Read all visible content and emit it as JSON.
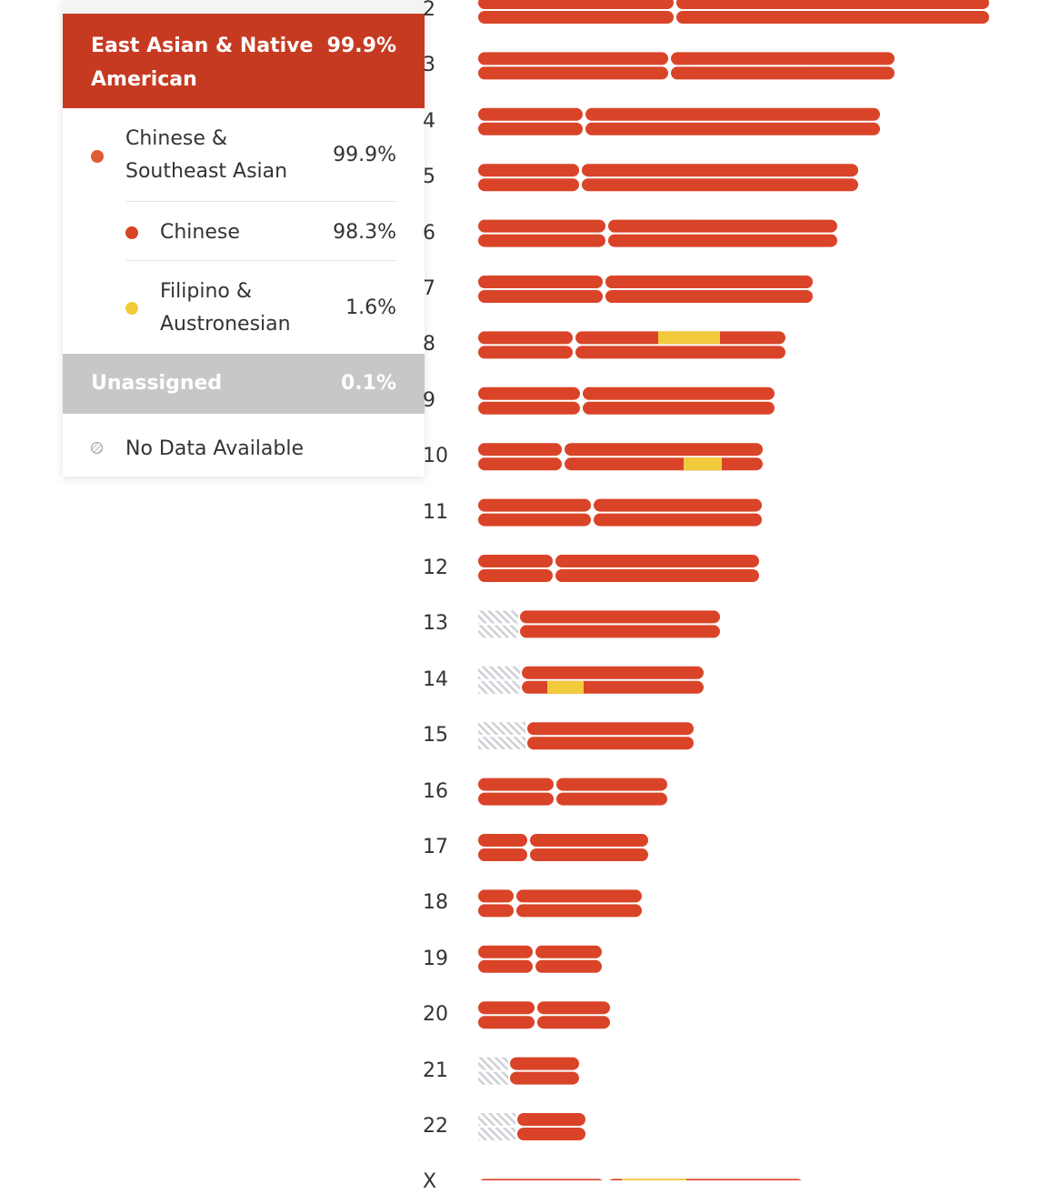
{
  "colors": {
    "east_asian": "#c63a22",
    "chinese": "#d94428",
    "filipino": "#f2cb3d",
    "unassigned": "#c7c7ca",
    "no_data_hatch": "#cfcfd6"
  },
  "legend": {
    "region": {
      "name": "East Asian & Native American",
      "percent": "99.9%"
    },
    "subregion": {
      "name_line1": "Chinese &",
      "name_line2": "Southeast Asian",
      "percent": "99.9%",
      "dot_color": "#e05a34"
    },
    "populations": [
      {
        "name_line1": "Chinese",
        "name_line2": "",
        "percent": "98.3%",
        "dot_color": "#d94428"
      },
      {
        "name_line1": "Filipino &",
        "name_line2": "Austronesian",
        "percent": "1.6%",
        "dot_color": "#f2cb3d"
      }
    ],
    "unassigned": {
      "name": "Unassigned",
      "percent": "0.1%"
    },
    "no_data": {
      "name": "No Data Available",
      "icon": "hatched-circle-icon"
    }
  },
  "chromosomes": [
    {
      "label": "2",
      "length": 562,
      "centromere": 216,
      "nodata_end": 0,
      "top_yellow": [],
      "bottom_yellow": []
    },
    {
      "label": "3",
      "length": 458,
      "centromere": 210,
      "nodata_end": 0,
      "top_yellow": [],
      "bottom_yellow": []
    },
    {
      "label": "4",
      "length": 442,
      "centromere": 116,
      "nodata_end": 0,
      "top_yellow": [],
      "bottom_yellow": []
    },
    {
      "label": "5",
      "length": 418,
      "centromere": 112,
      "nodata_end": 0,
      "top_yellow": [],
      "bottom_yellow": []
    },
    {
      "label": "6",
      "length": 395,
      "centromere": 141,
      "nodata_end": 0,
      "top_yellow": [],
      "bottom_yellow": []
    },
    {
      "label": "7",
      "length": 368,
      "centromere": 138,
      "nodata_end": 0,
      "top_yellow": [],
      "bottom_yellow": []
    },
    {
      "label": "8",
      "length": 338,
      "centromere": 105,
      "nodata_end": 0,
      "top_yellow": [
        [
          198,
          266
        ]
      ],
      "bottom_yellow": []
    },
    {
      "label": "9",
      "length": 326,
      "centromere": 113,
      "nodata_end": 0,
      "top_yellow": [],
      "bottom_yellow": []
    },
    {
      "label": "10",
      "length": 313,
      "centromere": 93,
      "nodata_end": 0,
      "top_yellow": [],
      "bottom_yellow": [
        [
          226,
          268
        ]
      ]
    },
    {
      "label": "11",
      "length": 312,
      "centromere": 125,
      "nodata_end": 0,
      "top_yellow": [],
      "bottom_yellow": []
    },
    {
      "label": "12",
      "length": 309,
      "centromere": 83,
      "nodata_end": 0,
      "top_yellow": [],
      "bottom_yellow": []
    },
    {
      "label": "13",
      "length": 266,
      "centromere": 44,
      "nodata_end": 44,
      "top_yellow": [],
      "bottom_yellow": []
    },
    {
      "label": "14",
      "length": 248,
      "centromere": 46,
      "nodata_end": 46,
      "top_yellow": [],
      "bottom_yellow": [
        [
          76,
          116
        ]
      ]
    },
    {
      "label": "15",
      "length": 237,
      "centromere": 52,
      "nodata_end": 52,
      "top_yellow": [],
      "bottom_yellow": []
    },
    {
      "label": "16",
      "length": 208,
      "centromere": 84,
      "nodata_end": 0,
      "top_yellow": [],
      "bottom_yellow": []
    },
    {
      "label": "17",
      "length": 187,
      "centromere": 55,
      "nodata_end": 0,
      "top_yellow": [],
      "bottom_yellow": []
    },
    {
      "label": "18",
      "length": 180,
      "centromere": 40,
      "nodata_end": 0,
      "top_yellow": [],
      "bottom_yellow": []
    },
    {
      "label": "19",
      "length": 136,
      "centromere": 61,
      "nodata_end": 0,
      "top_yellow": [],
      "bottom_yellow": []
    },
    {
      "label": "20",
      "length": 145,
      "centromere": 63,
      "nodata_end": 0,
      "top_yellow": [],
      "bottom_yellow": []
    },
    {
      "label": "21",
      "length": 111,
      "centromere": 33,
      "nodata_end": 33,
      "top_yellow": [],
      "bottom_yellow": []
    },
    {
      "label": "22",
      "length": 118,
      "centromere": 41,
      "nodata_end": 41,
      "top_yellow": [],
      "bottom_yellow": []
    },
    {
      "label": "X",
      "length": 358,
      "centromere": 140,
      "nodata_end": 0,
      "single": true,
      "top_yellow": [
        [
          158,
          229
        ]
      ],
      "bottom_yellow": []
    }
  ]
}
